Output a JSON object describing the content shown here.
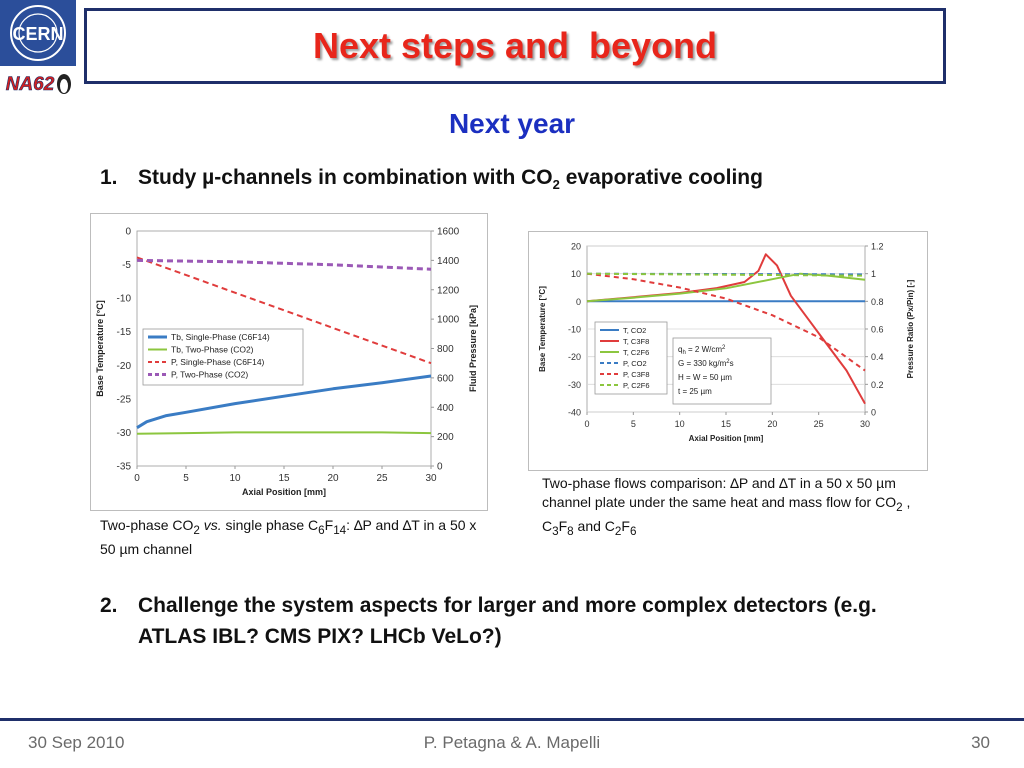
{
  "header": {
    "title": "Next steps and  beyond",
    "logo_cern": "CERN",
    "logo_na62": "NA62"
  },
  "subtitle": "Next year",
  "items": [
    {
      "number": "1.",
      "pre": "Study ",
      "mu": "µ",
      "post": "-channels in combination with CO",
      "sub": "2",
      "tail": " evaporative cooling"
    },
    {
      "number": "2.",
      "text": "Challenge the system aspects for larger and more complex detectors (e.g. ATLAS IBL? CMS PIX? LHCb VeLo?)"
    }
  ],
  "captions": {
    "left": {
      "a": "Two-phase CO",
      "a_sub": "2",
      "vs": " vs.",
      "b": " single phase C",
      "b_sub1": "6",
      "b_f": "F",
      "b_sub2": "14",
      "c": ": ∆P and ∆T in a 50 x 50 ",
      "mu": "µ",
      "d": "m channel"
    },
    "right": {
      "a": "Two-phase flows comparison: ∆P and ∆T in a 50 x 50 ",
      "mu": "µ",
      "b": "m channel plate under the same heat and mass flow for CO",
      "s1": "2",
      "c": " , C",
      "s2": "3",
      "d": "F",
      "s3": "8",
      "e": " and C",
      "s4": "2",
      "f": "F",
      "s5": "6"
    }
  },
  "footer": {
    "date": "30 Sep 2010",
    "authors": "P. Petagna & A. Mapelli",
    "page": "30"
  },
  "chart_data": [
    {
      "type": "line",
      "xlabel": "Axial Position [mm]",
      "ylabel": "Base Temperature [°C]",
      "y2label": "Fluid Pressure [kPa]",
      "xlim": [
        0,
        30
      ],
      "ylim": [
        -35,
        0
      ],
      "y2lim": [
        0,
        1600
      ],
      "xticks": [
        "0",
        "5",
        "10",
        "15",
        "20",
        "25",
        "30"
      ],
      "yticks": [
        "0",
        "-5",
        "-10",
        "-15",
        "-20",
        "-25",
        "-30",
        "-35"
      ],
      "y2ticks": [
        "1600",
        "1400",
        "1200",
        "1000",
        "800",
        "600",
        "400",
        "200",
        "0"
      ],
      "legend_position": "center-left",
      "series": [
        {
          "name": "Tb, Single-Phase (C6F14)",
          "axis": "left",
          "color": "#3a7cc4",
          "dash": "none",
          "width": 3,
          "x": [
            0,
            1,
            3,
            5,
            10,
            15,
            20,
            25,
            30
          ],
          "y": [
            -29.3,
            -28.4,
            -27.5,
            -27.0,
            -25.7,
            -24.6,
            -23.5,
            -22.6,
            -21.6
          ]
        },
        {
          "name": "Tb, Two-Phase (CO2)",
          "axis": "left",
          "color": "#8cc63f",
          "dash": "none",
          "width": 2,
          "x": [
            0,
            5,
            10,
            15,
            20,
            25,
            30
          ],
          "y": [
            -30.2,
            -30.1,
            -30.0,
            -30.0,
            -30.0,
            -30.0,
            -30.1
          ]
        },
        {
          "name": "P, Single-Phase (C6F14)",
          "axis": "right",
          "color": "#e03c3c",
          "dash": "6,4",
          "width": 2,
          "x": [
            0,
            30
          ],
          "y": [
            1420,
            700
          ]
        },
        {
          "name": "P, Two-Phase (CO2)",
          "axis": "right",
          "color": "#9b59b6",
          "dash": "6,4",
          "width": 3,
          "x": [
            0,
            5,
            10,
            15,
            20,
            25,
            30
          ],
          "y": [
            1400,
            1395,
            1390,
            1380,
            1370,
            1355,
            1340
          ]
        }
      ]
    },
    {
      "type": "line",
      "xlabel": "Axial Position [mm]",
      "ylabel": "Base Temperature [°C]",
      "y2label": "Pressure Ratio (Px/Pin) [-]",
      "xlim": [
        0,
        30
      ],
      "ylim": [
        -40,
        20
      ],
      "y2lim": [
        0,
        1.2
      ],
      "xticks": [
        "0",
        "5",
        "10",
        "15",
        "20",
        "25",
        "30"
      ],
      "yticks": [
        "20",
        "10",
        "0",
        "-10",
        "-20",
        "-30",
        "-40"
      ],
      "y2ticks": [
        "1.2",
        "1",
        "0.8",
        "0.6",
        "0.4",
        "0.2",
        "0"
      ],
      "annotations": [
        "q",
        "h",
        " = 2 W/cm",
        "2",
        "G = 330 kg/m",
        "2",
        "s",
        "H = W = 50 µm",
        "t = 25 µm"
      ],
      "legend_position": "bottom-left",
      "series": [
        {
          "name": "T, CO2",
          "axis": "left",
          "color": "#3a7cc4",
          "dash": "none",
          "width": 2,
          "x": [
            0,
            10,
            20,
            30
          ],
          "y": [
            0,
            0,
            0,
            0
          ]
        },
        {
          "name": "T, C3F8",
          "axis": "left",
          "color": "#e03c3c",
          "dash": "none",
          "width": 2,
          "x": [
            0,
            5,
            10,
            14,
            17,
            18.5,
            19.3,
            20.5,
            22,
            24,
            26,
            28,
            30
          ],
          "y": [
            0,
            1.5,
            3,
            4.8,
            7,
            11,
            17,
            13,
            2,
            -7,
            -16,
            -25,
            -37
          ]
        },
        {
          "name": "T, C2F6",
          "axis": "left",
          "color": "#8cc63f",
          "dash": "none",
          "width": 2,
          "x": [
            0,
            5,
            10,
            15,
            20,
            23,
            26,
            30
          ],
          "y": [
            0,
            1.3,
            2.8,
            4.7,
            8,
            10,
            9.3,
            7.8
          ]
        },
        {
          "name": "P, CO2",
          "axis": "right",
          "color": "#3a7cc4",
          "dash": "5,4",
          "width": 2,
          "x": [
            0,
            30
          ],
          "y": [
            1.0,
            0.995
          ]
        },
        {
          "name": "P, C3F8",
          "axis": "right",
          "color": "#e03c3c",
          "dash": "5,4",
          "width": 2,
          "x": [
            0,
            5,
            10,
            15,
            20,
            25,
            30
          ],
          "y": [
            1.0,
            0.96,
            0.9,
            0.82,
            0.7,
            0.54,
            0.3
          ]
        },
        {
          "name": "P, C2F6",
          "axis": "right",
          "color": "#8cc63f",
          "dash": "5,4",
          "width": 2,
          "x": [
            0,
            10,
            20,
            30
          ],
          "y": [
            1.0,
            0.995,
            0.99,
            0.985
          ]
        }
      ]
    }
  ]
}
